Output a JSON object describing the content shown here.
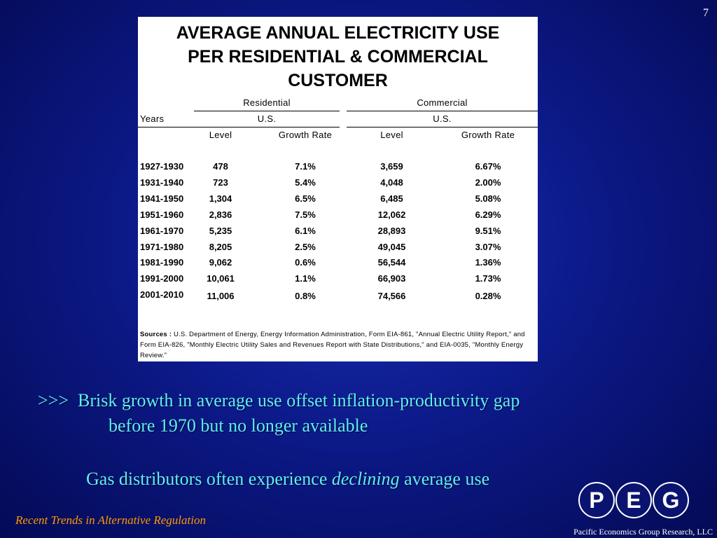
{
  "slide": {
    "number": "7"
  },
  "table": {
    "title_lines": [
      "AVERAGE ANNUAL ELECTRICITY USE",
      "PER RESIDENTIAL & COMMERCIAL",
      "CUSTOMER"
    ],
    "groups": {
      "residential": "Residential",
      "commercial": "Commercial"
    },
    "region": {
      "residential": "U.S.",
      "commercial": "U.S."
    },
    "years_header": "Years",
    "columns": {
      "res_level": "Level",
      "res_growth": "Growth Rate",
      "com_level": "Level",
      "com_growth": "Growth Rate"
    },
    "rows": [
      {
        "years": "1927-1930",
        "res_level": "478",
        "res_growth": "7.1%",
        "com_level": "3,659",
        "com_growth": "6.67%"
      },
      {
        "years": "1931-1940",
        "res_level": "723",
        "res_growth": "5.4%",
        "com_level": "4,048",
        "com_growth": "2.00%"
      },
      {
        "years": "1941-1950",
        "res_level": "1,304",
        "res_growth": "6.5%",
        "com_level": "6,485",
        "com_growth": "5.08%"
      },
      {
        "years": "1951-1960",
        "res_level": "2,836",
        "res_growth": "7.5%",
        "com_level": "12,062",
        "com_growth": "6.29%"
      },
      {
        "years": "1961-1970",
        "res_level": "5,235",
        "res_growth": "6.1%",
        "com_level": "28,893",
        "com_growth": "9.51%"
      },
      {
        "years": "1971-1980",
        "res_level": "8,205",
        "res_growth": "2.5%",
        "com_level": "49,045",
        "com_growth": "3.07%"
      },
      {
        "years": "1981-1990",
        "res_level": "9,062",
        "res_growth": "0.6%",
        "com_level": "56,544",
        "com_growth": "1.36%"
      },
      {
        "years": "1991-2000",
        "res_level": "10,061",
        "res_growth": "1.1%",
        "com_level": "66,903",
        "com_growth": "1.73%"
      },
      {
        "years": "2001-2010",
        "res_level": "11,006",
        "res_growth": "0.8%",
        "com_level": "74,566",
        "com_growth": "0.28%"
      }
    ],
    "sources_label": "Sources",
    "sources_text": "U.S. Department of Energy, Energy Information Administration, Form EIA-861, \"Annual Electric Utility Report,\" and Form EIA-826, \"Monthly Electric Utility Sales and Revenues Report with State Distributions,\" and EIA-0035, \"Monthly Energy Review.\""
  },
  "bullets": {
    "first_prefix": ">>>",
    "first_line1": "Brisk growth in average use offset inflation-productivity gap",
    "first_line2": "before 1970 but no longer available",
    "second_before": "Gas distributors often experience ",
    "second_emphasis": "declining",
    "second_after": " average use"
  },
  "footer": {
    "left": "Recent Trends in Alternative Regulation",
    "right": "Pacific Economics Group Research, LLC"
  },
  "logo": {
    "letters": [
      "P",
      "E",
      "G"
    ]
  },
  "colors": {
    "background": "#0c1a8a",
    "bullet_text": "#5ff0f0",
    "footer_left": "#ff9a00",
    "footer_right": "#ffffff"
  }
}
